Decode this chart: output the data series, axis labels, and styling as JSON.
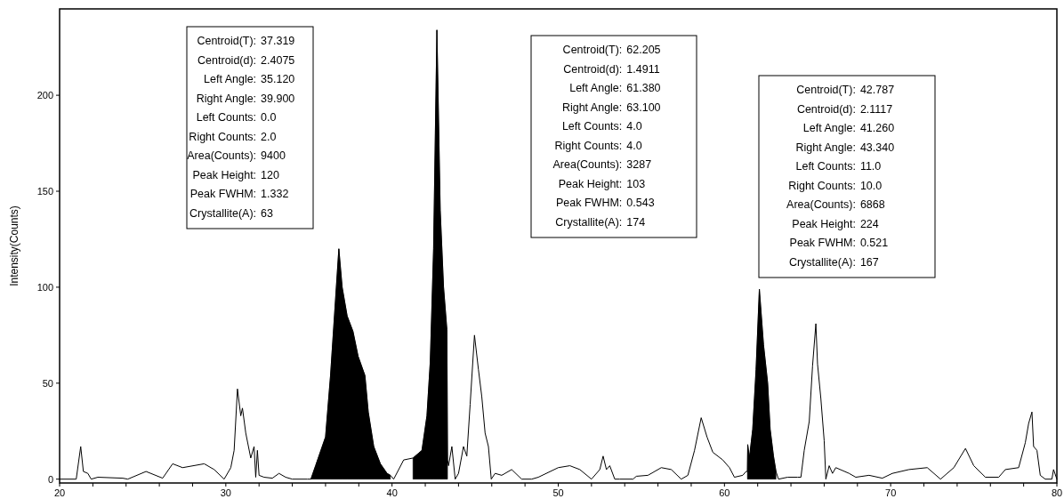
{
  "chart_data": {
    "type": "line",
    "ylabel": "Intensity(Counts)",
    "xlim": [
      20,
      80
    ],
    "ylim": [
      -2,
      245
    ],
    "xticks": [
      20,
      {
        "value": 22,
        "label": null
      },
      {
        "value": 24,
        "label": null
      },
      {
        "value": 26,
        "label": null
      },
      {
        "value": 28,
        "label": null
      },
      30,
      {
        "value": 32,
        "label": null
      },
      {
        "value": 34,
        "label": null
      },
      {
        "value": 36,
        "label": null
      },
      {
        "value": 38,
        "label": null
      },
      40,
      {
        "value": 42,
        "label": null
      },
      {
        "value": 44,
        "label": null
      },
      {
        "value": 46,
        "label": null
      },
      {
        "value": 48,
        "label": null
      },
      50,
      {
        "value": 52,
        "label": null
      },
      {
        "value": 54,
        "label": null
      },
      {
        "value": 56,
        "label": null
      },
      {
        "value": 58,
        "label": null
      },
      60,
      {
        "value": 62,
        "label": null
      },
      {
        "value": 64,
        "label": null
      },
      {
        "value": 66,
        "label": null
      },
      {
        "value": 68,
        "label": null
      },
      70,
      {
        "value": 72,
        "label": null
      },
      {
        "value": 74,
        "label": null
      },
      {
        "value": 76,
        "label": null
      },
      {
        "value": 78,
        "label": null
      },
      80
    ],
    "yticks": [
      0,
      50,
      100,
      150,
      200
    ],
    "grid": false,
    "series": [
      {
        "color": "#000000",
        "x": [
          20,
          21.0,
          21.27,
          21.43,
          21.7,
          21.9,
          22.3,
          23.8,
          24.1,
          25.2,
          26.2,
          26.8,
          27.4,
          28.7,
          29.3,
          29.9,
          30.3,
          30.5,
          30.7,
          30.9,
          31.0,
          31.2,
          31.5,
          31.7,
          31.8,
          31.9,
          32.0,
          32.3,
          32.8,
          33.2,
          33.6,
          34.0,
          34.9,
          35.12,
          35.4,
          36.0,
          36.3,
          36.8,
          37.0,
          37.3,
          37.65,
          37.96,
          38.37,
          38.57,
          38.9,
          39.3,
          39.7,
          39.9,
          40.1,
          40.7,
          41.26,
          41.8,
          42.1,
          42.3,
          42.5,
          42.7,
          42.9,
          43.1,
          43.3,
          43.34,
          43.4,
          43.6,
          43.8,
          44.0,
          44.3,
          44.5,
          44.7,
          44.96,
          45.2,
          45.4,
          45.6,
          45.8,
          45.97,
          46.2,
          46.6,
          47.2,
          47.8,
          48.4,
          48.8,
          50.0,
          50.7,
          51.3,
          52.0,
          52.5,
          52.7,
          52.9,
          53.1,
          53.4,
          53.7,
          54.5,
          54.7,
          55.4,
          56.2,
          56.8,
          57.4,
          57.8,
          58.2,
          58.6,
          58.95,
          59.3,
          59.9,
          60.3,
          60.6,
          61.1,
          61.3,
          61.38,
          61.4,
          61.5,
          61.7,
          61.9,
          62.1,
          62.35,
          62.6,
          62.75,
          62.95,
          63.1,
          63.25,
          63.8,
          64.4,
          64.6,
          64.8,
          65.1,
          65.3,
          65.5,
          65.6,
          65.8,
          66.0,
          66.1,
          66.3,
          66.5,
          66.7,
          67.5,
          67.9,
          68.7,
          69.5,
          70.1,
          71.1,
          72.2,
          73.0,
          73.8,
          74.5,
          75.0,
          75.7,
          76.5,
          76.9,
          77.7,
          78.1,
          78.3,
          78.5,
          78.6,
          78.8,
          79.0,
          79.3,
          79.7,
          79.8,
          80
        ],
        "values": [
          0,
          0,
          17,
          4,
          3,
          0,
          1,
          0.5,
          0,
          4,
          0.5,
          8,
          6,
          8,
          5,
          0,
          6,
          15,
          47,
          33,
          37,
          24,
          11,
          17,
          1,
          15,
          2,
          1,
          0.5,
          3,
          1,
          0,
          0,
          0,
          7,
          22,
          54,
          120,
          100,
          85,
          77,
          64,
          54,
          35,
          17,
          8,
          3,
          2,
          0,
          10,
          11,
          15,
          33,
          61,
          120,
          234,
          140,
          100,
          78,
          10,
          7,
          17,
          0,
          3,
          17,
          12,
          39,
          75,
          57,
          43,
          24,
          17,
          0,
          3,
          2,
          5,
          0,
          0,
          1,
          6,
          7,
          5,
          0,
          5,
          12,
          5,
          7,
          0,
          0,
          0,
          1.5,
          2,
          6,
          5,
          0,
          2,
          15,
          32,
          22,
          14,
          10,
          6,
          1,
          2,
          4,
          4,
          18,
          11,
          26,
          57,
          99,
          70,
          50,
          26,
          12,
          4,
          0,
          1,
          1,
          1,
          15,
          30,
          59,
          81,
          60,
          42,
          20,
          0,
          7,
          3,
          6,
          3,
          1,
          2,
          0.5,
          3,
          5,
          6,
          0,
          6,
          16,
          7,
          1,
          1,
          5,
          6,
          19,
          29,
          35,
          17,
          15,
          2,
          0,
          0,
          5,
          0
        ]
      },
      {
        "type": "area",
        "color": "#000000",
        "x": [
          35.12,
          35.4,
          36.0,
          36.3,
          36.8,
          37.0,
          37.3,
          37.65,
          37.96,
          38.37,
          38.57,
          38.9,
          39.3,
          39.7,
          39.9
        ],
        "values": [
          0,
          7,
          22,
          54,
          120,
          100,
          85,
          77,
          64,
          54,
          35,
          17,
          8,
          3,
          2
        ]
      },
      {
        "type": "area",
        "color": "#000000",
        "x": [
          41.26,
          41.8,
          42.1,
          42.3,
          42.5,
          42.7,
          42.9,
          43.1,
          43.3,
          43.34
        ],
        "values": [
          11,
          15,
          33,
          61,
          120,
          234,
          140,
          100,
          78,
          10
        ]
      },
      {
        "type": "area",
        "color": "#000000",
        "x": [
          61.38,
          61.4,
          61.5,
          61.7,
          61.9,
          62.1,
          62.35,
          62.6,
          62.75,
          62.95,
          63.1
        ],
        "values": [
          4,
          18,
          11,
          26,
          57,
          99,
          70,
          50,
          26,
          12,
          4
        ]
      }
    ],
    "annotations": [
      "Centroid(T): 37.319\nCentroid(d): 2.4075\nLeft Angle: 35.120\nRight Angle: 39.900\nLeft Counts: 0.0\nRight Counts: 2.0\nArea(Counts): 9400\nPeak Height: 120\nPeak FWHM: 1.332\nCrystallite(A): 63",
      "Centroid(T): 62.205\nCentroid(d): 1.4911\nLeft Angle: 61.380\nRight Angle: 63.100\nLeft Counts: 4.0\nRight Counts: 4.0\nArea(Counts): 3287\nPeak Height: 103\nPeak FWHM: 0.543\nCrystallite(A): 174",
      "Centroid(T): 42.787\nCentroid(d): 2.1117\nLeft Angle: 41.260\nRight Angle: 43.340\nLeft Counts: 11.0\nRight Counts: 10.0\nArea(Counts): 6868\nPeak Height: 224\nPeak FWHM: 0.521\nCrystallite(A): 167"
    ]
  }
}
